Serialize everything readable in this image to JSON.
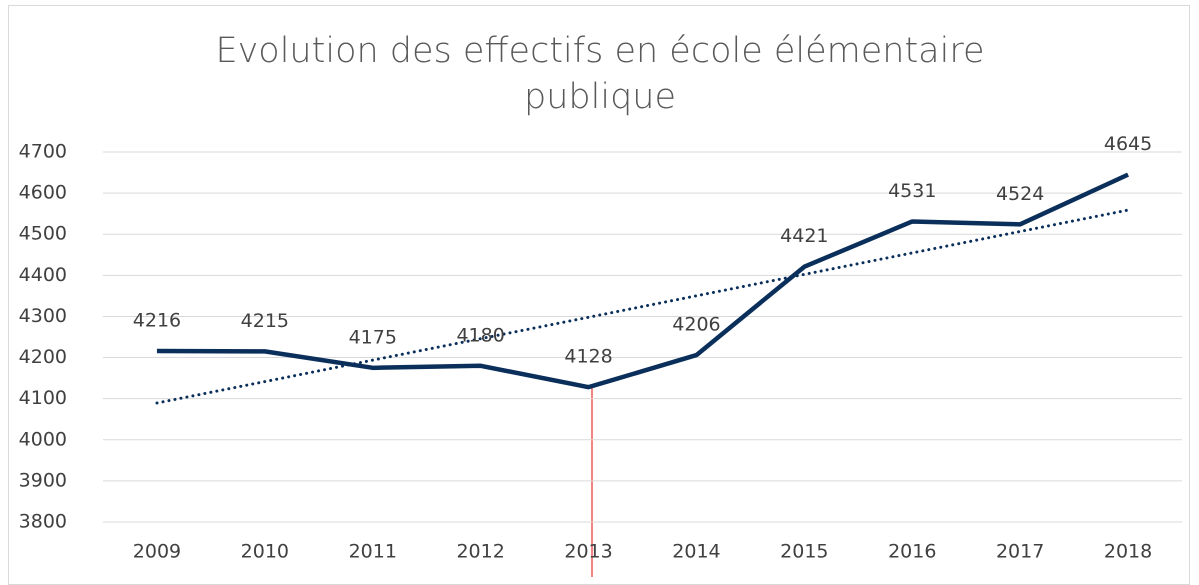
{
  "chart_data": {
    "type": "line",
    "title": "Evolution des effectifs en école élémentaire publique",
    "categories": [
      "2009",
      "2010",
      "2011",
      "2012",
      "2013",
      "2014",
      "2015",
      "2016",
      "2017",
      "2018"
    ],
    "series": [
      {
        "color": "#0b2f5b",
        "values": [
          4216,
          4215,
          4175,
          4180,
          4128,
          4206,
          4421,
          4531,
          4524,
          4645
        ]
      }
    ],
    "trendline": "linear",
    "ylim": [
      3800,
      4700
    ],
    "yticks": [
      3800,
      3900,
      4000,
      4100,
      4200,
      4300,
      4400,
      4500,
      4600,
      4700
    ],
    "grid": true,
    "data_labels": true
  }
}
